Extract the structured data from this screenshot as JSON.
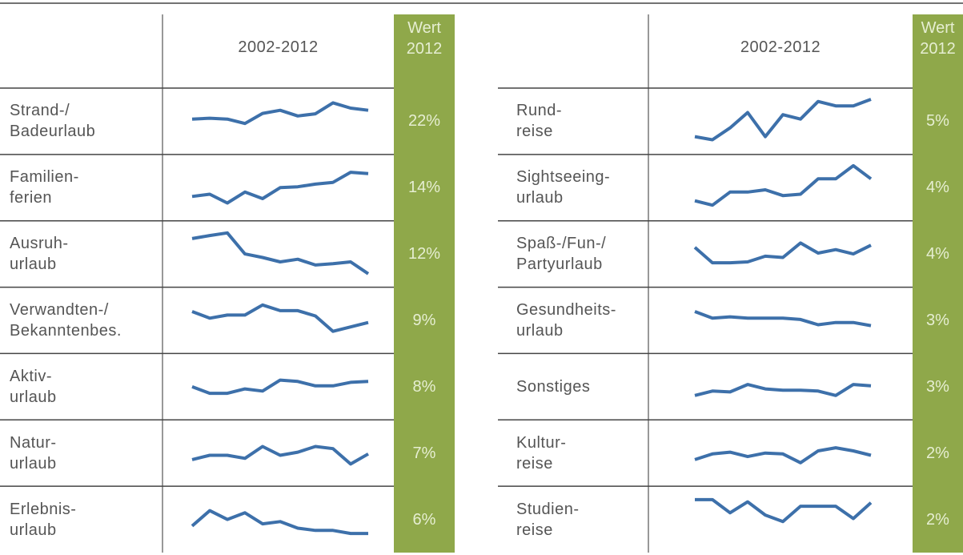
{
  "ylim": [
    0,
    100
  ],
  "tables": [
    {
      "header": {
        "period": "2002-2012",
        "value": [
          "Wert",
          "2012"
        ]
      },
      "rows": [
        {
          "label": [
            "Strand-/",
            "Badeurlaub"
          ],
          "value": "22%",
          "trend": [
            55,
            57,
            55,
            45,
            68,
            75,
            62,
            67,
            92,
            80,
            75
          ]
        },
        {
          "label": [
            "Familien-",
            "ferien"
          ],
          "value": "14%",
          "trend": [
            30,
            35,
            15,
            40,
            25,
            50,
            52,
            58,
            62,
            85,
            82
          ]
        },
        {
          "label": [
            "Ausruh-",
            "urlaub"
          ],
          "value": "12%",
          "trend": [
            85,
            92,
            98,
            50,
            42,
            32,
            38,
            25,
            28,
            32,
            5
          ]
        },
        {
          "label": [
            "Verwandten-/",
            "Bekanntenbes."
          ],
          "value": "9%",
          "trend": [
            70,
            55,
            62,
            62,
            85,
            72,
            72,
            60,
            25,
            35,
            45
          ]
        },
        {
          "label": [
            "Aktiv-",
            "urlaub"
          ],
          "value": "8%",
          "trend": [
            50,
            35,
            35,
            45,
            40,
            65,
            62,
            52,
            52,
            60,
            62
          ]
        },
        {
          "label": [
            "Natur-",
            "urlaub"
          ],
          "value": "7%",
          "trend": [
            35,
            45,
            45,
            38,
            65,
            45,
            52,
            65,
            60,
            25,
            48
          ]
        },
        {
          "label": [
            "Erlebnis-",
            "urlaub"
          ],
          "value": "6%",
          "trend": [
            35,
            70,
            50,
            65,
            40,
            45,
            30,
            25,
            25,
            18,
            18
          ]
        }
      ]
    },
    {
      "header": {
        "period": "2002-2012",
        "value": [
          "Wert",
          "2012"
        ]
      },
      "rows": [
        {
          "label": [
            "Rund-",
            "reise"
          ],
          "value": "5%",
          "trend": [
            15,
            8,
            35,
            70,
            15,
            65,
            55,
            95,
            85,
            85,
            100
          ]
        },
        {
          "label": [
            "Sightseeing-",
            "urlaub"
          ],
          "value": "4%",
          "trend": [
            20,
            10,
            40,
            40,
            45,
            32,
            35,
            70,
            70,
            100,
            70
          ]
        },
        {
          "label": [
            "Spaß-/Fun-/",
            "Partyurlaub"
          ],
          "value": "4%",
          "trend": [
            65,
            30,
            30,
            32,
            45,
            42,
            75,
            52,
            60,
            50,
            70
          ]
        },
        {
          "label": [
            "Gesundheits-",
            "urlaub"
          ],
          "value": "3%",
          "trend": [
            70,
            55,
            58,
            55,
            55,
            55,
            52,
            40,
            45,
            45,
            38
          ]
        },
        {
          "label": [
            "Sonstiges"
          ],
          "value": "3%",
          "trend": [
            30,
            40,
            38,
            55,
            45,
            42,
            42,
            40,
            30,
            55,
            52
          ]
        },
        {
          "label": [
            "Kultur-",
            "reise"
          ],
          "value": "2%",
          "trend": [
            35,
            48,
            52,
            42,
            50,
            48,
            28,
            55,
            62,
            55,
            45
          ]
        },
        {
          "label": [
            "Studien-",
            "reise"
          ],
          "value": "2%",
          "trend": [
            95,
            95,
            65,
            90,
            60,
            45,
            80,
            80,
            80,
            52,
            88
          ]
        }
      ]
    }
  ]
}
